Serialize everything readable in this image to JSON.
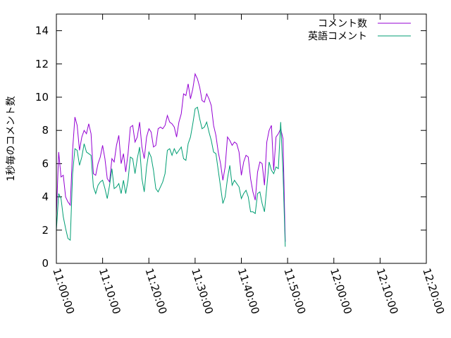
{
  "chart_data": {
    "type": "line",
    "ylabel": "1秒毎のコメント数",
    "xlabel": "",
    "xlim": [
      "11:00:00",
      "12:20:00"
    ],
    "ylim": [
      0,
      15
    ],
    "x_ticks": [
      "11:00:00",
      "11:10:00",
      "11:20:00",
      "11:30:00",
      "11:40:00",
      "11:50:00",
      "12:00:00",
      "12:10:00",
      "12:20:00"
    ],
    "y_ticks": [
      "0",
      "2",
      "4",
      "6",
      "8",
      "10",
      "12",
      "14"
    ],
    "legend_position": "top-right",
    "grid": false,
    "series": [
      {
        "name": "コメント数",
        "color": "#9400d3",
        "points": [
          [
            "11:00:00",
            2.9
          ],
          [
            "11:00:30",
            6.7
          ],
          [
            "11:01:00",
            5.2
          ],
          [
            "11:01:30",
            5.3
          ],
          [
            "11:02:00",
            4.0
          ],
          [
            "11:02:30",
            3.7
          ],
          [
            "11:03:00",
            3.5
          ],
          [
            "11:03:30",
            6.8
          ],
          [
            "11:04:00",
            8.8
          ],
          [
            "11:04:30",
            8.3
          ],
          [
            "11:05:00",
            6.8
          ],
          [
            "11:05:30",
            7.6
          ],
          [
            "11:06:00",
            8.0
          ],
          [
            "11:06:30",
            7.8
          ],
          [
            "11:07:00",
            8.4
          ],
          [
            "11:07:30",
            7.8
          ],
          [
            "11:08:00",
            5.4
          ],
          [
            "11:08:30",
            5.3
          ],
          [
            "11:09:00",
            6.0
          ],
          [
            "11:09:30",
            6.4
          ],
          [
            "11:10:00",
            7.1
          ],
          [
            "11:10:30",
            6.3
          ],
          [
            "11:11:00",
            5.1
          ],
          [
            "11:11:30",
            4.9
          ],
          [
            "11:12:00",
            6.3
          ],
          [
            "11:12:30",
            6.1
          ],
          [
            "11:13:00",
            7.1
          ],
          [
            "11:13:30",
            7.7
          ],
          [
            "11:14:00",
            6.0
          ],
          [
            "11:14:30",
            6.6
          ],
          [
            "11:15:00",
            5.5
          ],
          [
            "11:15:30",
            6.6
          ],
          [
            "11:16:00",
            8.2
          ],
          [
            "11:16:30",
            8.3
          ],
          [
            "11:17:00",
            7.3
          ],
          [
            "11:17:30",
            7.6
          ],
          [
            "11:18:00",
            8.5
          ],
          [
            "11:18:30",
            7.0
          ],
          [
            "11:19:00",
            6.3
          ],
          [
            "11:19:30",
            7.6
          ],
          [
            "11:20:00",
            8.1
          ],
          [
            "11:20:30",
            7.9
          ],
          [
            "11:21:00",
            7.0
          ],
          [
            "11:21:30",
            7.1
          ],
          [
            "11:22:00",
            8.1
          ],
          [
            "11:22:30",
            8.2
          ],
          [
            "11:23:00",
            8.1
          ],
          [
            "11:23:30",
            8.3
          ],
          [
            "11:24:00",
            8.9
          ],
          [
            "11:24:30",
            8.5
          ],
          [
            "11:25:00",
            8.4
          ],
          [
            "11:25:30",
            8.2
          ],
          [
            "11:26:00",
            7.6
          ],
          [
            "11:26:30",
            8.5
          ],
          [
            "11:27:00",
            9.0
          ],
          [
            "11:27:30",
            10.2
          ],
          [
            "11:28:00",
            10.1
          ],
          [
            "11:28:30",
            10.8
          ],
          [
            "11:29:00",
            9.9
          ],
          [
            "11:29:30",
            10.5
          ],
          [
            "11:30:00",
            11.4
          ],
          [
            "11:30:30",
            11.1
          ],
          [
            "11:31:00",
            10.6
          ],
          [
            "11:31:30",
            9.8
          ],
          [
            "11:32:00",
            9.7
          ],
          [
            "11:32:30",
            10.2
          ],
          [
            "11:33:00",
            9.9
          ],
          [
            "11:33:30",
            9.5
          ],
          [
            "11:34:00",
            8.3
          ],
          [
            "11:34:30",
            7.7
          ],
          [
            "11:35:00",
            6.7
          ],
          [
            "11:35:30",
            6.0
          ],
          [
            "11:36:00",
            5.0
          ],
          [
            "11:36:30",
            5.8
          ],
          [
            "11:37:00",
            7.6
          ],
          [
            "11:37:30",
            7.4
          ],
          [
            "11:38:00",
            7.1
          ],
          [
            "11:38:30",
            7.3
          ],
          [
            "11:39:00",
            7.2
          ],
          [
            "11:39:30",
            6.7
          ],
          [
            "11:40:00",
            5.3
          ],
          [
            "11:40:30",
            6.1
          ],
          [
            "11:41:00",
            6.5
          ],
          [
            "11:41:30",
            6.4
          ],
          [
            "11:42:00",
            5.1
          ],
          [
            "11:42:30",
            4.3
          ],
          [
            "11:43:00",
            3.8
          ],
          [
            "11:43:30",
            5.5
          ],
          [
            "11:44:00",
            6.1
          ],
          [
            "11:44:30",
            6.0
          ],
          [
            "11:45:00",
            4.7
          ],
          [
            "11:45:30",
            7.3
          ],
          [
            "11:46:00",
            8.0
          ],
          [
            "11:46:30",
            8.3
          ],
          [
            "11:47:00",
            5.6
          ],
          [
            "11:47:30",
            7.6
          ],
          [
            "11:48:00",
            7.8
          ],
          [
            "11:48:30",
            8.1
          ],
          [
            "11:49:00",
            7.5
          ],
          [
            "11:49:30",
            1.3
          ]
        ]
      },
      {
        "name": "英語コメント",
        "color": "#009e73",
        "points": [
          [
            "11:00:00",
            2.0
          ],
          [
            "11:00:30",
            4.2
          ],
          [
            "11:01:00",
            3.9
          ],
          [
            "11:01:30",
            2.8
          ],
          [
            "11:02:00",
            2.1
          ],
          [
            "11:02:30",
            1.5
          ],
          [
            "11:03:00",
            1.4
          ],
          [
            "11:03:30",
            5.4
          ],
          [
            "11:04:00",
            6.9
          ],
          [
            "11:04:30",
            6.8
          ],
          [
            "11:05:00",
            5.9
          ],
          [
            "11:05:30",
            6.4
          ],
          [
            "11:06:00",
            7.2
          ],
          [
            "11:06:30",
            6.7
          ],
          [
            "11:07:00",
            6.6
          ],
          [
            "11:07:30",
            6.5
          ],
          [
            "11:08:00",
            4.6
          ],
          [
            "11:08:30",
            4.2
          ],
          [
            "11:09:00",
            4.7
          ],
          [
            "11:09:30",
            4.9
          ],
          [
            "11:10:00",
            5.0
          ],
          [
            "11:10:30",
            4.5
          ],
          [
            "11:11:00",
            3.9
          ],
          [
            "11:11:30",
            4.7
          ],
          [
            "11:12:00",
            5.7
          ],
          [
            "11:12:30",
            4.5
          ],
          [
            "11:13:00",
            4.6
          ],
          [
            "11:13:30",
            4.8
          ],
          [
            "11:14:00",
            4.2
          ],
          [
            "11:14:30",
            5.0
          ],
          [
            "11:15:00",
            4.2
          ],
          [
            "11:15:30",
            5.0
          ],
          [
            "11:16:00",
            6.4
          ],
          [
            "11:16:30",
            6.3
          ],
          [
            "11:17:00",
            5.4
          ],
          [
            "11:17:30",
            6.3
          ],
          [
            "11:18:00",
            7.0
          ],
          [
            "11:18:30",
            5.1
          ],
          [
            "11:19:00",
            4.3
          ],
          [
            "11:19:30",
            5.8
          ],
          [
            "11:20:00",
            6.7
          ],
          [
            "11:20:30",
            6.4
          ],
          [
            "11:21:00",
            5.6
          ],
          [
            "11:21:30",
            4.5
          ],
          [
            "11:22:00",
            4.3
          ],
          [
            "11:22:30",
            4.6
          ],
          [
            "11:23:00",
            4.9
          ],
          [
            "11:23:30",
            5.4
          ],
          [
            "11:24:00",
            6.8
          ],
          [
            "11:24:30",
            6.9
          ],
          [
            "11:25:00",
            6.5
          ],
          [
            "11:25:30",
            6.9
          ],
          [
            "11:26:00",
            6.6
          ],
          [
            "11:26:30",
            6.8
          ],
          [
            "11:27:00",
            7.0
          ],
          [
            "11:27:30",
            6.3
          ],
          [
            "11:28:00",
            6.2
          ],
          [
            "11:28:30",
            7.2
          ],
          [
            "11:29:00",
            7.6
          ],
          [
            "11:29:30",
            8.4
          ],
          [
            "11:30:00",
            9.3
          ],
          [
            "11:30:30",
            9.4
          ],
          [
            "11:31:00",
            8.7
          ],
          [
            "11:31:30",
            8.1
          ],
          [
            "11:32:00",
            8.2
          ],
          [
            "11:32:30",
            8.5
          ],
          [
            "11:33:00",
            7.9
          ],
          [
            "11:33:30",
            7.4
          ],
          [
            "11:34:00",
            6.7
          ],
          [
            "11:34:30",
            6.6
          ],
          [
            "11:35:00",
            5.6
          ],
          [
            "11:35:30",
            4.6
          ],
          [
            "11:36:00",
            3.6
          ],
          [
            "11:36:30",
            4.0
          ],
          [
            "11:37:00",
            5.1
          ],
          [
            "11:37:30",
            5.9
          ],
          [
            "11:38:00",
            4.7
          ],
          [
            "11:38:30",
            5.0
          ],
          [
            "11:39:00",
            4.8
          ],
          [
            "11:39:30",
            4.6
          ],
          [
            "11:40:00",
            3.9
          ],
          [
            "11:40:30",
            4.2
          ],
          [
            "11:41:00",
            4.4
          ],
          [
            "11:41:30",
            4.0
          ],
          [
            "11:42:00",
            3.1
          ],
          [
            "11:42:30",
            3.1
          ],
          [
            "11:43:00",
            3.0
          ],
          [
            "11:43:30",
            4.2
          ],
          [
            "11:44:00",
            4.3
          ],
          [
            "11:44:30",
            3.6
          ],
          [
            "11:45:00",
            3.1
          ],
          [
            "11:45:30",
            4.6
          ],
          [
            "11:46:00",
            6.1
          ],
          [
            "11:46:30",
            5.6
          ],
          [
            "11:47:00",
            5.4
          ],
          [
            "11:47:30",
            5.8
          ],
          [
            "11:48:00",
            5.7
          ],
          [
            "11:48:30",
            8.5
          ],
          [
            "11:49:00",
            5.5
          ],
          [
            "11:49:30",
            1.0
          ]
        ]
      }
    ]
  }
}
